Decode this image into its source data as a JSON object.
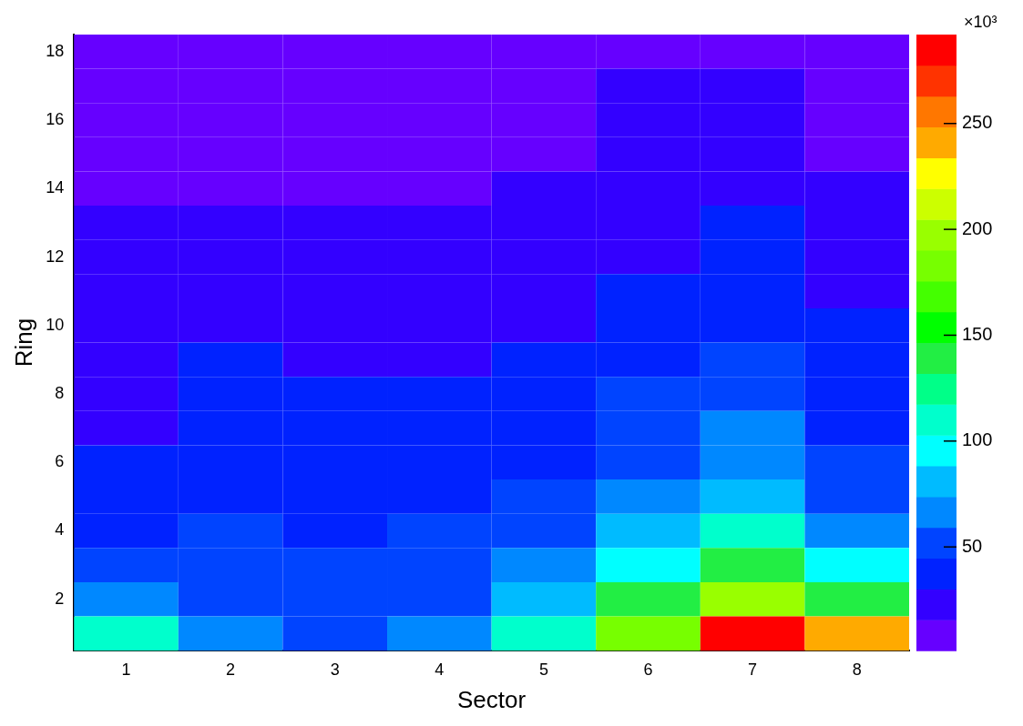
{
  "chart_data": {
    "type": "heatmap",
    "xlabel": "Sector",
    "ylabel": "Ring",
    "clabel": "×10³",
    "categories": [
      "1",
      "2",
      "3",
      "4",
      "5",
      "6",
      "7",
      "8"
    ],
    "ylim": [
      0.5,
      18.5
    ],
    "yticks": [
      2,
      4,
      6,
      8,
      10,
      12,
      14,
      16,
      18
    ],
    "cells": [
      [
        9,
        9,
        9,
        9,
        9,
        9,
        9,
        9
      ],
      [
        9,
        9,
        9,
        9,
        9,
        23,
        23,
        9
      ],
      [
        9,
        9,
        9,
        9,
        9,
        23,
        23,
        9
      ],
      [
        9,
        9,
        9,
        9,
        9,
        23,
        23,
        9
      ],
      [
        9,
        9,
        9,
        9,
        23,
        23,
        23,
        23
      ],
      [
        23,
        23,
        23,
        23,
        23,
        23,
        38,
        23
      ],
      [
        23,
        23,
        23,
        23,
        23,
        23,
        38,
        23
      ],
      [
        23,
        23,
        23,
        23,
        23,
        38,
        38,
        23
      ],
      [
        23,
        23,
        23,
        23,
        23,
        38,
        38,
        38
      ],
      [
        23,
        38,
        23,
        23,
        38,
        38,
        52,
        38
      ],
      [
        23,
        38,
        38,
        38,
        38,
        52,
        52,
        38
      ],
      [
        23,
        38,
        38,
        38,
        38,
        52,
        67,
        38
      ],
      [
        38,
        38,
        38,
        38,
        38,
        52,
        67,
        52
      ],
      [
        38,
        38,
        38,
        38,
        52,
        67,
        82,
        52
      ],
      [
        38,
        52,
        38,
        52,
        52,
        82,
        111,
        67
      ],
      [
        52,
        52,
        52,
        52,
        67,
        96,
        140,
        96
      ],
      [
        67,
        52,
        52,
        52,
        82,
        140,
        199,
        140
      ],
      [
        111,
        67,
        52,
        67,
        111,
        184,
        286,
        243
      ]
    ],
    "clim": [
      1,
      292
    ],
    "cticks": [
      50,
      100,
      150,
      200,
      250
    ],
    "grid": false
  }
}
